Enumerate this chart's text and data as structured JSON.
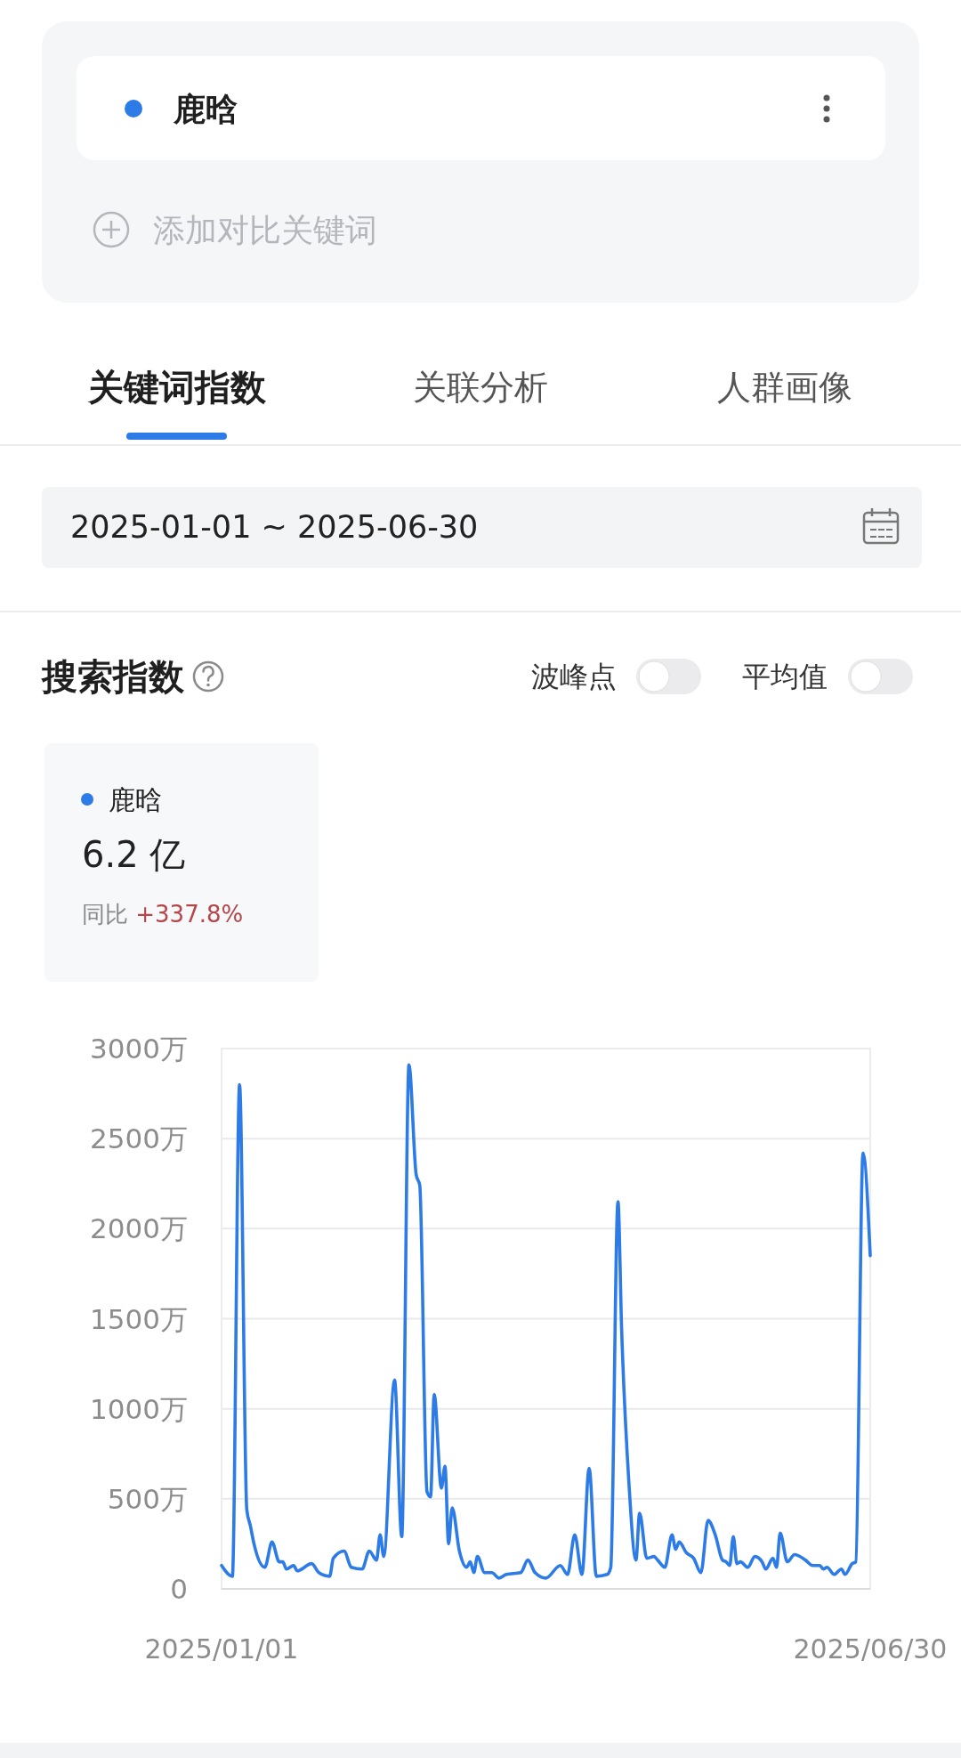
{
  "chart_data": {
    "type": "line",
    "title": "搜索指数",
    "annotations": [
      "鹿晗",
      "添加对比关键词",
      "关键词指数",
      "关联分析",
      "人群画像",
      "2025-01-01 ~ 2025-06-30",
      "波峰点",
      "平均值",
      "6.2 亿",
      "同比 +337.8%"
    ],
    "x": [
      "2025-01-01",
      "2025-01-04",
      "2025-01-06",
      "2025-01-08",
      "2025-01-09",
      "2025-01-10",
      "2025-01-13",
      "2025-01-15",
      "2025-01-17",
      "2025-01-18",
      "2025-01-19",
      "2025-01-21",
      "2025-01-22",
      "2025-01-26",
      "2025-01-28",
      "2025-01-31",
      "2025-02-01",
      "2025-02-04",
      "2025-02-06",
      "2025-02-09",
      "2025-02-11",
      "2025-02-13",
      "2025-02-14",
      "2025-02-15",
      "2025-02-18",
      "2025-02-20",
      "2025-02-22",
      "2025-02-24",
      "2025-02-25",
      "2025-02-27",
      "2025-02-28",
      "2025-03-01",
      "2025-03-03",
      "2025-03-04",
      "2025-03-05",
      "2025-03-06",
      "2025-03-08",
      "2025-03-10",
      "2025-03-11",
      "2025-03-12",
      "2025-03-13",
      "2025-03-15",
      "2025-03-17",
      "2025-03-19",
      "2025-03-21",
      "2025-03-25",
      "2025-03-27",
      "2025-03-29",
      "2025-04-01",
      "2025-04-05",
      "2025-04-07",
      "2025-04-09",
      "2025-04-11",
      "2025-04-13",
      "2025-04-15",
      "2025-04-18",
      "2025-04-19",
      "2025-04-21",
      "2025-04-22",
      "2025-04-24",
      "2025-04-26",
      "2025-04-27",
      "2025-04-29",
      "2025-05-01",
      "2025-05-02",
      "2025-05-04",
      "2025-05-06",
      "2025-05-07",
      "2025-05-08",
      "2025-05-10",
      "2025-05-12",
      "2025-05-14",
      "2025-05-16",
      "2025-05-18",
      "2025-05-20",
      "2025-05-21",
      "2025-05-22",
      "2025-05-23",
      "2025-05-24",
      "2025-05-25",
      "2025-05-27",
      "2025-05-29",
      "2025-05-31",
      "2025-06-01",
      "2025-06-03",
      "2025-06-04",
      "2025-06-05",
      "2025-06-07",
      "2025-06-09",
      "2025-06-12",
      "2025-06-14",
      "2025-06-16",
      "2025-06-17",
      "2025-06-18",
      "2025-06-20",
      "2025-06-22",
      "2025-06-23",
      "2025-06-25",
      "2025-06-26",
      "2025-06-28",
      "2025-06-30"
    ],
    "series": [
      {
        "name": "鹿晗",
        "color": "#2d7be6",
        "values": [
          130,
          70,
          2800,
          440,
          350,
          250,
          120,
          260,
          150,
          150,
          110,
          130,
          100,
          140,
          90,
          70,
          170,
          210,
          120,
          110,
          210,
          160,
          300,
          180,
          1160,
          290,
          2910,
          2300,
          2240,
          540,
          510,
          1080,
          560,
          680,
          250,
          450,
          210,
          120,
          150,
          90,
          180,
          90,
          90,
          60,
          80,
          90,
          160,
          90,
          60,
          130,
          80,
          300,
          80,
          670,
          70,
          80,
          120,
          2150,
          1450,
          600,
          160,
          420,
          170,
          180,
          160,
          120,
          300,
          220,
          260,
          200,
          170,
          90,
          380,
          300,
          160,
          150,
          130,
          290,
          140,
          150,
          120,
          180,
          150,
          110,
          170,
          120,
          310,
          150,
          190,
          160,
          130,
          130,
          110,
          120,
          80,
          110,
          80,
          140,
          150,
          2420,
          1850
        ]
      }
    ],
    "xlim": [
      "2025-01-01",
      "2025-06-30"
    ],
    "xticks": [
      {
        "value": "2025-01-01",
        "label": "2025/01/01"
      },
      {
        "value": "2025-06-30",
        "label": "2025/06/30"
      }
    ],
    "ylim": [
      0,
      3000
    ],
    "yticks": [
      0,
      {
        "value": 500,
        "label": "500万"
      },
      {
        "value": 1000,
        "label": "1000万"
      },
      {
        "value": 1500,
        "label": "1500万"
      },
      {
        "value": 2000,
        "label": "2000万"
      },
      {
        "value": 2500,
        "label": "2500万"
      },
      {
        "value": 3000,
        "label": "3000万"
      }
    ],
    "grid": "y",
    "legend": "top left"
  }
}
